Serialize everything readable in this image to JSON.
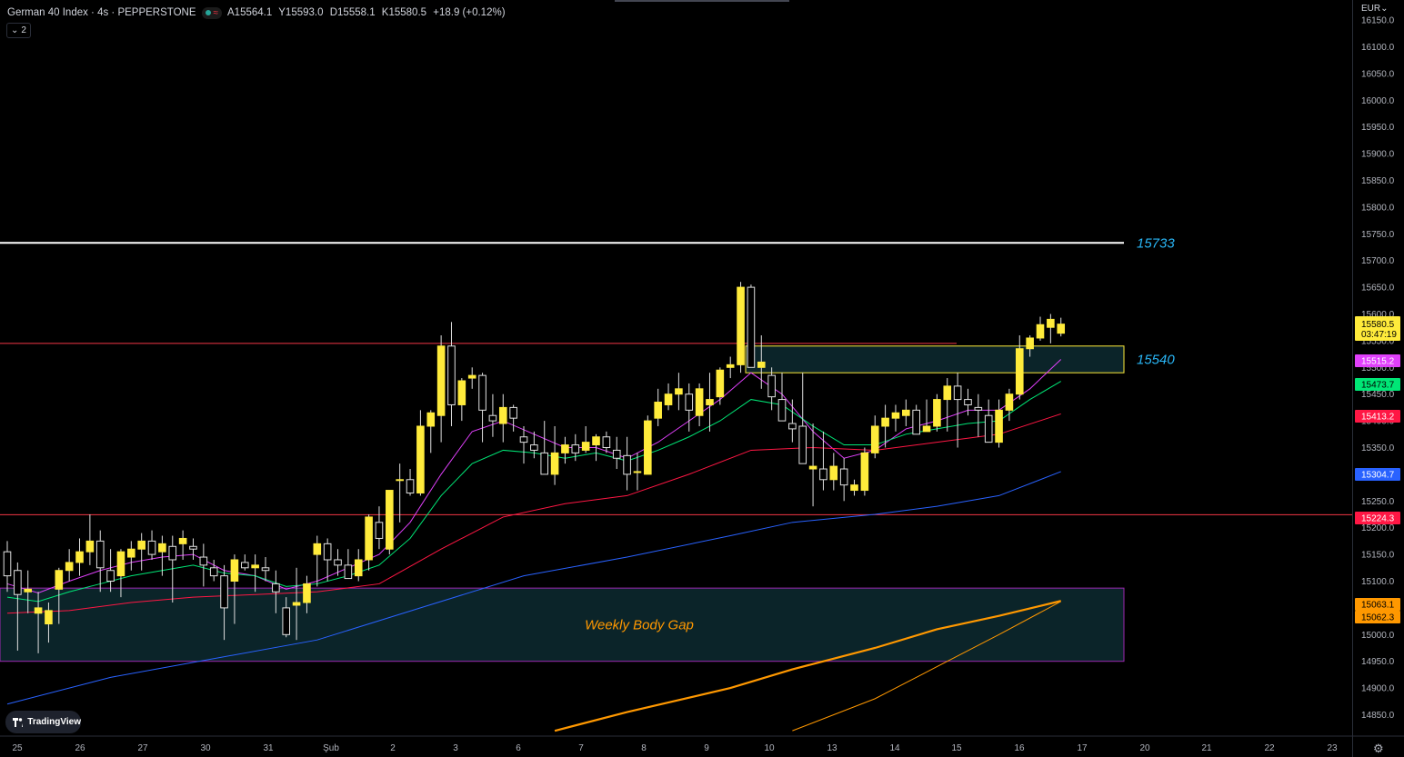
{
  "header": {
    "symbol": "German 40 Index · 4s · PEPPERSTONE",
    "ohlc": [
      "A15564.1",
      "Y15593.0",
      "D15558.1",
      "K15580.5",
      "+18.9 (+0.12%)"
    ],
    "indicator_count": "2",
    "colors": {
      "up": "#26a69a",
      "down": "#f23645"
    }
  },
  "axis": {
    "currency": "EUR",
    "price_ticks": [
      "16150.0",
      "16100.0",
      "16050.0",
      "16000.0",
      "15950.0",
      "15900.0",
      "15850.0",
      "15800.0",
      "15750.0",
      "15700.0",
      "15650.0",
      "15600.0",
      "15550.0",
      "15500.0",
      "15450.0",
      "15400.0",
      "15350.0",
      "15300.0",
      "15250.0",
      "15200.0",
      "15150.0",
      "15100.0",
      "15050.0",
      "15000.0",
      "14950.0",
      "14900.0",
      "14850.0"
    ],
    "time_ticks": [
      "25",
      "26",
      "27",
      "30",
      "31",
      "Şub",
      "2",
      "3",
      "6",
      "7",
      "8",
      "9",
      "10",
      "13",
      "14",
      "15",
      "16",
      "17",
      "20",
      "21",
      "22",
      "23"
    ],
    "last_price": {
      "price": "15580.5",
      "countdown": "03:47:19"
    },
    "badges": [
      {
        "text": "15515.2",
        "price": 15515.2,
        "color": "#e040fb"
      },
      {
        "text": "15473.7",
        "price": 15473.7,
        "color": "#00e676"
      },
      {
        "text": "15413.2",
        "price": 15413.2,
        "color": "#ff1744"
      },
      {
        "text": "15304.7",
        "price": 15304.7,
        "color": "#2962ff"
      },
      {
        "text": "15224.3",
        "price": 15224.3,
        "color": "#ff1744"
      },
      {
        "text": "15063.1",
        "price": 15063.1,
        "color": "#ff9800"
      },
      {
        "text": "15062.3",
        "price": 15062.3,
        "color": "#ff9800"
      }
    ]
  },
  "chart_data": {
    "type": "candlestick",
    "ylim": [
      14830,
      16170
    ],
    "candles": [
      [
        15155,
        15175,
        15080,
        15110
      ],
      [
        15120,
        15135,
        14970,
        15075
      ],
      [
        15080,
        15120,
        15040,
        15085
      ],
      [
        15040,
        15080,
        14965,
        15050
      ],
      [
        15020,
        15060,
        14985,
        15045
      ],
      [
        15085,
        15125,
        15020,
        15120
      ],
      [
        15120,
        15160,
        15100,
        15135
      ],
      [
        15135,
        15180,
        15110,
        15155
      ],
      [
        15155,
        15225,
        15130,
        15175
      ],
      [
        15175,
        15195,
        15080,
        15125
      ],
      [
        15120,
        15160,
        15080,
        15100
      ],
      [
        15110,
        15160,
        15070,
        15155
      ],
      [
        15145,
        15175,
        15120,
        15160
      ],
      [
        15160,
        15190,
        15120,
        15175
      ],
      [
        15175,
        15195,
        15140,
        15150
      ],
      [
        15155,
        15185,
        15110,
        15170
      ],
      [
        15165,
        15185,
        15060,
        15140
      ],
      [
        15170,
        15195,
        15140,
        15180
      ],
      [
        15165,
        15180,
        15140,
        15160
      ],
      [
        15145,
        15170,
        15090,
        15130
      ],
      [
        15125,
        15140,
        15100,
        15110
      ],
      [
        15110,
        15130,
        14990,
        15050
      ],
      [
        15100,
        15150,
        15020,
        15140
      ],
      [
        15135,
        15150,
        15120,
        15125
      ],
      [
        15125,
        15150,
        15080,
        15130
      ],
      [
        15125,
        15145,
        15100,
        15120
      ],
      [
        15095,
        15120,
        15040,
        15080
      ],
      [
        15050,
        15070,
        14995,
        15000
      ],
      [
        15055,
        15125,
        14990,
        15060
      ],
      [
        15060,
        15110,
        15040,
        15095
      ],
      [
        15150,
        15185,
        15090,
        15170
      ],
      [
        15170,
        15180,
        15100,
        15140
      ],
      [
        15140,
        15160,
        15110,
        15130
      ],
      [
        15130,
        15160,
        15110,
        15105
      ],
      [
        15110,
        15160,
        15100,
        15140
      ],
      [
        15140,
        15225,
        15120,
        15220
      ],
      [
        15210,
        15240,
        15160,
        15180
      ],
      [
        15160,
        15270,
        15150,
        15270
      ],
      [
        15290,
        15320,
        15210,
        15290
      ],
      [
        15290,
        15310,
        15260,
        15265
      ],
      [
        15265,
        15420,
        15260,
        15390
      ],
      [
        15390,
        15420,
        15340,
        15415
      ],
      [
        15410,
        15560,
        15360,
        15540
      ],
      [
        15540,
        15585,
        15390,
        15430
      ],
      [
        15430,
        15480,
        15400,
        15475
      ],
      [
        15480,
        15500,
        15460,
        15485
      ],
      [
        15485,
        15490,
        15360,
        15420
      ],
      [
        15410,
        15450,
        15370,
        15400
      ],
      [
        15395,
        15450,
        15360,
        15425
      ],
      [
        15425,
        15430,
        15380,
        15405
      ],
      [
        15370,
        15390,
        15320,
        15360
      ],
      [
        15355,
        15380,
        15330,
        15345
      ],
      [
        15340,
        15400,
        15300,
        15300
      ],
      [
        15300,
        15390,
        15280,
        15340
      ],
      [
        15340,
        15370,
        15320,
        15355
      ],
      [
        15355,
        15375,
        15325,
        15340
      ],
      [
        15345,
        15390,
        15340,
        15360
      ],
      [
        15355,
        15375,
        15325,
        15370
      ],
      [
        15370,
        15380,
        15340,
        15350
      ],
      [
        15345,
        15370,
        15310,
        15330
      ],
      [
        15335,
        15370,
        15270,
        15300
      ],
      [
        15305,
        15340,
        15270,
        15305
      ],
      [
        15300,
        15410,
        15300,
        15400
      ],
      [
        15405,
        15460,
        15390,
        15435
      ],
      [
        15430,
        15470,
        15420,
        15450
      ],
      [
        15450,
        15490,
        15420,
        15460
      ],
      [
        15450,
        15470,
        15380,
        15420
      ],
      [
        15410,
        15470,
        15390,
        15460
      ],
      [
        15430,
        15490,
        15380,
        15440
      ],
      [
        15445,
        15500,
        15430,
        15495
      ],
      [
        15500,
        15520,
        15480,
        15505
      ],
      [
        15505,
        15660,
        15490,
        15650
      ],
      [
        15650,
        15655,
        15500,
        15500
      ],
      [
        15500,
        15560,
        15460,
        15510
      ],
      [
        15485,
        15500,
        15420,
        15445
      ],
      [
        15440,
        15490,
        15410,
        15400
      ],
      [
        15395,
        15440,
        15360,
        15385
      ],
      [
        15390,
        15490,
        15320,
        15320
      ],
      [
        15310,
        15395,
        15240,
        15315
      ],
      [
        15310,
        15380,
        15270,
        15290
      ],
      [
        15290,
        15340,
        15270,
        15315
      ],
      [
        15310,
        15330,
        15250,
        15280
      ],
      [
        15270,
        15290,
        15260,
        15280
      ],
      [
        15270,
        15350,
        15260,
        15340
      ],
      [
        15340,
        15410,
        15330,
        15390
      ],
      [
        15390,
        15430,
        15350,
        15405
      ],
      [
        15405,
        15430,
        15380,
        15415
      ],
      [
        15410,
        15440,
        15390,
        15420
      ],
      [
        15420,
        15430,
        15380,
        15375
      ],
      [
        15380,
        15440,
        15380,
        15390
      ],
      [
        15390,
        15450,
        15380,
        15440
      ],
      [
        15440,
        15480,
        15380,
        15465
      ],
      [
        15465,
        15490,
        15350,
        15440
      ],
      [
        15440,
        15460,
        15410,
        15430
      ],
      [
        15425,
        15450,
        15370,
        15420
      ],
      [
        15410,
        15440,
        15360,
        15360
      ],
      [
        15360,
        15440,
        15350,
        15420
      ],
      [
        15420,
        15460,
        15400,
        15450
      ],
      [
        15450,
        15560,
        15440,
        15535
      ],
      [
        15535,
        15560,
        15520,
        15555
      ],
      [
        15555,
        15595,
        15550,
        15580
      ],
      [
        15575,
        15600,
        15545,
        15590
      ],
      [
        15564,
        15593,
        15558,
        15581
      ]
    ],
    "moving_averages": [
      {
        "name": "ma-magenta",
        "color": "#e040fb",
        "values": [
          [
            0,
            15095
          ],
          [
            3,
            15078
          ],
          [
            6,
            15100
          ],
          [
            9,
            15120
          ],
          [
            12,
            15135
          ],
          [
            15,
            15145
          ],
          [
            18,
            15150
          ],
          [
            21,
            15120
          ],
          [
            24,
            15110
          ],
          [
            27,
            15085
          ],
          [
            30,
            15100
          ],
          [
            33,
            15125
          ],
          [
            36,
            15150
          ],
          [
            39,
            15210
          ],
          [
            42,
            15300
          ],
          [
            45,
            15380
          ],
          [
            48,
            15400
          ],
          [
            51,
            15375
          ],
          [
            54,
            15350
          ],
          [
            57,
            15350
          ],
          [
            60,
            15330
          ],
          [
            63,
            15360
          ],
          [
            66,
            15400
          ],
          [
            69,
            15440
          ],
          [
            72,
            15490
          ],
          [
            75,
            15450
          ],
          [
            78,
            15380
          ],
          [
            81,
            15330
          ],
          [
            84,
            15345
          ],
          [
            87,
            15385
          ],
          [
            90,
            15400
          ],
          [
            93,
            15420
          ],
          [
            96,
            15420
          ],
          [
            99,
            15460
          ],
          [
            102,
            15515
          ]
        ]
      },
      {
        "name": "ma-green",
        "color": "#00e676",
        "values": [
          [
            0,
            15070
          ],
          [
            3,
            15062
          ],
          [
            6,
            15080
          ],
          [
            9,
            15095
          ],
          [
            12,
            15110
          ],
          [
            15,
            15120
          ],
          [
            18,
            15130
          ],
          [
            21,
            15115
          ],
          [
            24,
            15110
          ],
          [
            27,
            15090
          ],
          [
            30,
            15095
          ],
          [
            33,
            15110
          ],
          [
            36,
            15130
          ],
          [
            39,
            15180
          ],
          [
            42,
            15260
          ],
          [
            45,
            15320
          ],
          [
            48,
            15345
          ],
          [
            51,
            15340
          ],
          [
            54,
            15330
          ],
          [
            57,
            15340
          ],
          [
            60,
            15325
          ],
          [
            63,
            15345
          ],
          [
            66,
            15370
          ],
          [
            69,
            15400
          ],
          [
            72,
            15440
          ],
          [
            75,
            15430
          ],
          [
            78,
            15390
          ],
          [
            81,
            15355
          ],
          [
            84,
            15355
          ],
          [
            87,
            15375
          ],
          [
            90,
            15385
          ],
          [
            93,
            15395
          ],
          [
            96,
            15400
          ],
          [
            99,
            15440
          ],
          [
            102,
            15474
          ]
        ]
      },
      {
        "name": "ma-red",
        "color": "#ff1744",
        "values": [
          [
            0,
            15040
          ],
          [
            6,
            15045
          ],
          [
            12,
            15060
          ],
          [
            18,
            15070
          ],
          [
            24,
            15075
          ],
          [
            30,
            15080
          ],
          [
            36,
            15095
          ],
          [
            42,
            15160
          ],
          [
            48,
            15220
          ],
          [
            54,
            15245
          ],
          [
            60,
            15260
          ],
          [
            66,
            15300
          ],
          [
            72,
            15345
          ],
          [
            78,
            15350
          ],
          [
            84,
            15345
          ],
          [
            90,
            15360
          ],
          [
            96,
            15375
          ],
          [
            102,
            15413
          ]
        ]
      },
      {
        "name": "ma-blue",
        "color": "#2962ff",
        "values": [
          [
            0,
            14870
          ],
          [
            10,
            14920
          ],
          [
            20,
            14955
          ],
          [
            30,
            14990
          ],
          [
            40,
            15050
          ],
          [
            50,
            15110
          ],
          [
            60,
            15145
          ],
          [
            70,
            15185
          ],
          [
            76,
            15210
          ],
          [
            84,
            15225
          ],
          [
            90,
            15240
          ],
          [
            96,
            15260
          ],
          [
            102,
            15305
          ]
        ]
      },
      {
        "name": "ma-orange-thick",
        "color": "#ff9800",
        "values": [
          [
            53,
            14820
          ],
          [
            60,
            14855
          ],
          [
            70,
            14900
          ],
          [
            76,
            14935
          ],
          [
            84,
            14975
          ],
          [
            90,
            15010
          ],
          [
            96,
            15035
          ],
          [
            102,
            15063
          ]
        ]
      },
      {
        "name": "ma-orange-thin",
        "color": "#ff9800",
        "values": [
          [
            76,
            14820
          ],
          [
            84,
            14880
          ],
          [
            90,
            14940
          ],
          [
            96,
            15000
          ],
          [
            102,
            15062
          ]
        ]
      }
    ],
    "levels": [
      {
        "name": "level-15733",
        "price": 15733,
        "color": "#ffffff",
        "label": "15733"
      },
      {
        "name": "level-red-upper",
        "price": 15545,
        "color": "#f23645"
      },
      {
        "name": "level-red-lower",
        "price": 15224.3,
        "color": "#f23645"
      }
    ],
    "zones": [
      {
        "name": "zone-15540",
        "top": 15540,
        "bottom": 15490,
        "border": "#ffeb3b",
        "label": "15540"
      },
      {
        "name": "weekly-body-gap",
        "top": 15087,
        "bottom": 14950,
        "border": "#9c27b0",
        "label": "Weekly Body Gap"
      }
    ]
  },
  "branding": {
    "tradingview": "TradingView"
  }
}
